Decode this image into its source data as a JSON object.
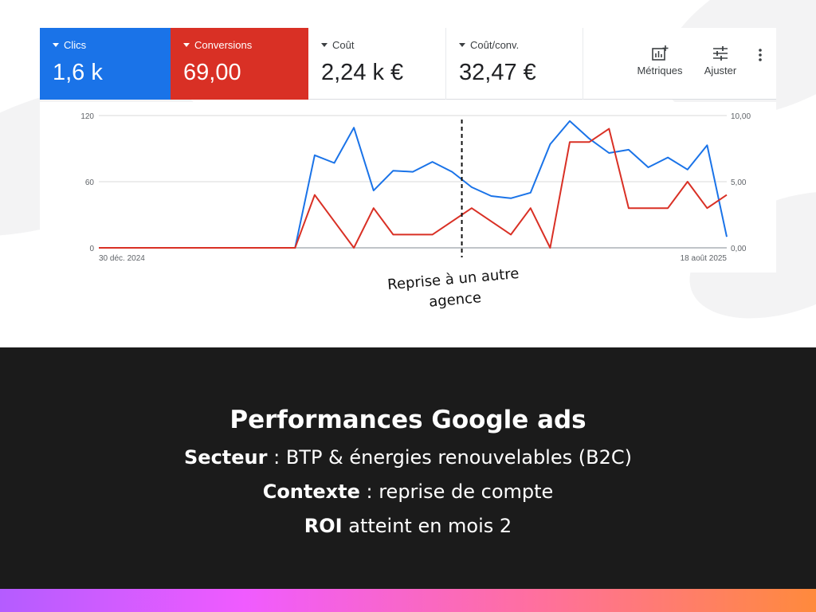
{
  "metrics": [
    {
      "label": "Clics",
      "value": "1,6 k"
    },
    {
      "label": "Conversions",
      "value": "69,00"
    },
    {
      "label": "Coût",
      "value": "2,24 k €"
    },
    {
      "label": "Coût/conv.",
      "value": "32,47 €"
    }
  ],
  "toolbar": {
    "metrics_label": "Métriques",
    "adjust_label": "Ajuster"
  },
  "icons": {
    "metrics": "add-chart-icon",
    "adjust": "tune-sliders-icon",
    "more": "more-vert-icon",
    "caret": "caret-down-icon"
  },
  "colors": {
    "clics": "#1a73e8",
    "conversions": "#d93025",
    "dark_panel": "#1b1b1b"
  },
  "chart_data": {
    "type": "line",
    "x_start_label": "30 déc. 2024",
    "x_end_label": "18 août 2025",
    "y_left_ticks": [
      "0",
      "60",
      "120"
    ],
    "y_right_ticks": [
      "0,00",
      "5,00",
      "10,00"
    ],
    "ylim_left": [
      0,
      120
    ],
    "ylim_right": [
      0,
      10
    ],
    "grid": true,
    "series": [
      {
        "name": "Clics",
        "axis": "left",
        "color": "#1a73e8",
        "values": [
          0,
          0,
          0,
          0,
          0,
          0,
          0,
          0,
          0,
          0,
          0,
          84,
          77,
          109,
          52,
          70,
          69,
          78,
          69,
          55,
          47,
          45,
          50,
          94,
          115,
          99,
          86,
          89,
          73,
          82,
          71,
          93,
          10
        ]
      },
      {
        "name": "Conversions",
        "axis": "right",
        "color": "#d93025",
        "values": [
          0,
          0,
          0,
          0,
          0,
          0,
          0,
          0,
          0,
          0,
          0,
          4,
          2,
          0,
          3,
          1,
          1,
          1,
          2,
          3,
          2,
          1,
          3,
          0,
          8,
          8,
          9,
          3,
          3,
          3,
          5,
          3,
          4
        ]
      }
    ],
    "vertical_marker_index": 18.5
  },
  "annotation": {
    "line1": "Reprise à un autre",
    "line2": "agence"
  },
  "panel": {
    "title": "Performances Google ads",
    "sector_label": "Secteur",
    "sector_value": " : BTP & énergies renouvelables (B2C)",
    "context_label": "Contexte",
    "context_value": " : reprise de compte",
    "roi_label": "ROI",
    "roi_value": " atteint en mois 2"
  }
}
